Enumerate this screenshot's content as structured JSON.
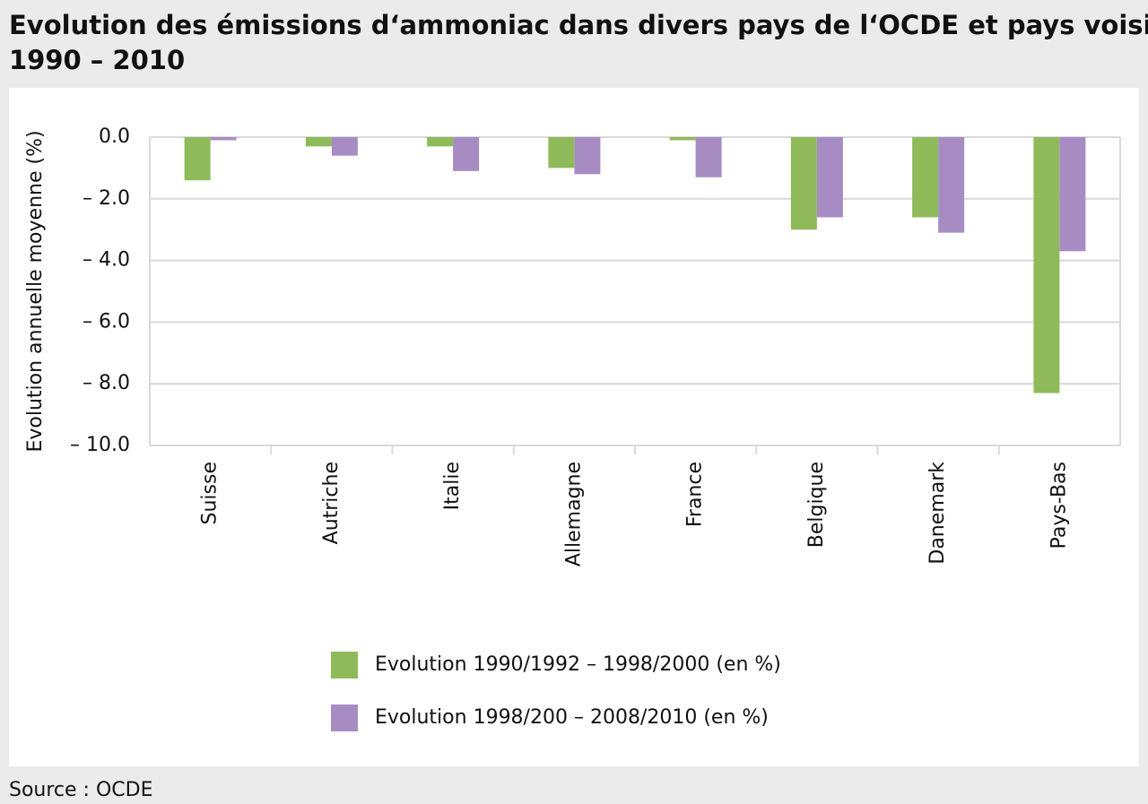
{
  "chart_data": {
    "type": "bar",
    "title": [
      "Evolution des émissions d‘ammoniac dans divers pays de l‘OCDE et pays voisins",
      "1990 – 2010"
    ],
    "y_label": "Evolution annuelle moyenne (%)",
    "categories": [
      "Suisse",
      "Autriche",
      "Italie",
      "Allemagne",
      "France",
      "Belgique",
      "Danemark",
      "Pays-Bas"
    ],
    "series": [
      {
        "name": "Evolution 1990/1992 – 1998/2000 (en %)",
        "color": "#8fba59",
        "values": [
          -1.4,
          -0.3,
          -0.3,
          -1.0,
          -0.1,
          -3.0,
          -2.6,
          -8.3
        ]
      },
      {
        "name": "Evolution 1998/200 – 2008/2010 (en %)",
        "color": "#a78cc4",
        "values": [
          -0.1,
          -0.6,
          -1.1,
          -1.2,
          -1.3,
          -2.6,
          -3.1,
          -3.7
        ]
      }
    ],
    "ylim": [
      -10,
      0
    ],
    "yticks": [
      {
        "value": 0,
        "label": "0.0"
      },
      {
        "value": -2,
        "label": "– 2.0"
      },
      {
        "value": -4,
        "label": "– 4.0"
      },
      {
        "value": -6,
        "label": "– 6.0"
      },
      {
        "value": -8,
        "label": "– 8.0"
      },
      {
        "value": -10,
        "label": "– 10.0"
      }
    ],
    "grid": true,
    "legend": "bottom",
    "source": "Source : OCDE"
  }
}
